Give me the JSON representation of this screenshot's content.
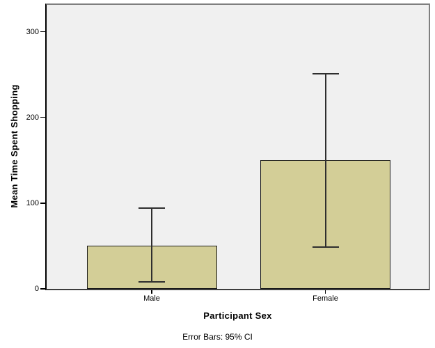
{
  "chart_data": {
    "type": "bar",
    "title": "",
    "categories": [
      "Male",
      "Female"
    ],
    "series": [
      {
        "name": "Mean Time Spent Shopping",
        "values": [
          50,
          150
        ],
        "ci_lower": [
          8,
          49
        ],
        "ci_upper": [
          94,
          251
        ]
      }
    ],
    "xlabel": "Participant Sex",
    "ylabel": "Mean Time Spent Shopping",
    "footnote": "Error Bars: 95% CI",
    "yticks": [
      0,
      100,
      200,
      300
    ],
    "ylim": [
      0,
      333
    ],
    "grid": false,
    "legend_position": "none",
    "colors": {
      "bar_fill": "#D3CE97",
      "bar_border": "#1A1A1A",
      "error_bar": "#2E2E2E",
      "plot_bg": "#F0F0F0",
      "frame_gray": "#7F7F7F",
      "axis_left": "#000000",
      "axis_bottom": "#3D3D3D",
      "text": "#000000",
      "canvas_bg": "#FFFFFF"
    }
  }
}
